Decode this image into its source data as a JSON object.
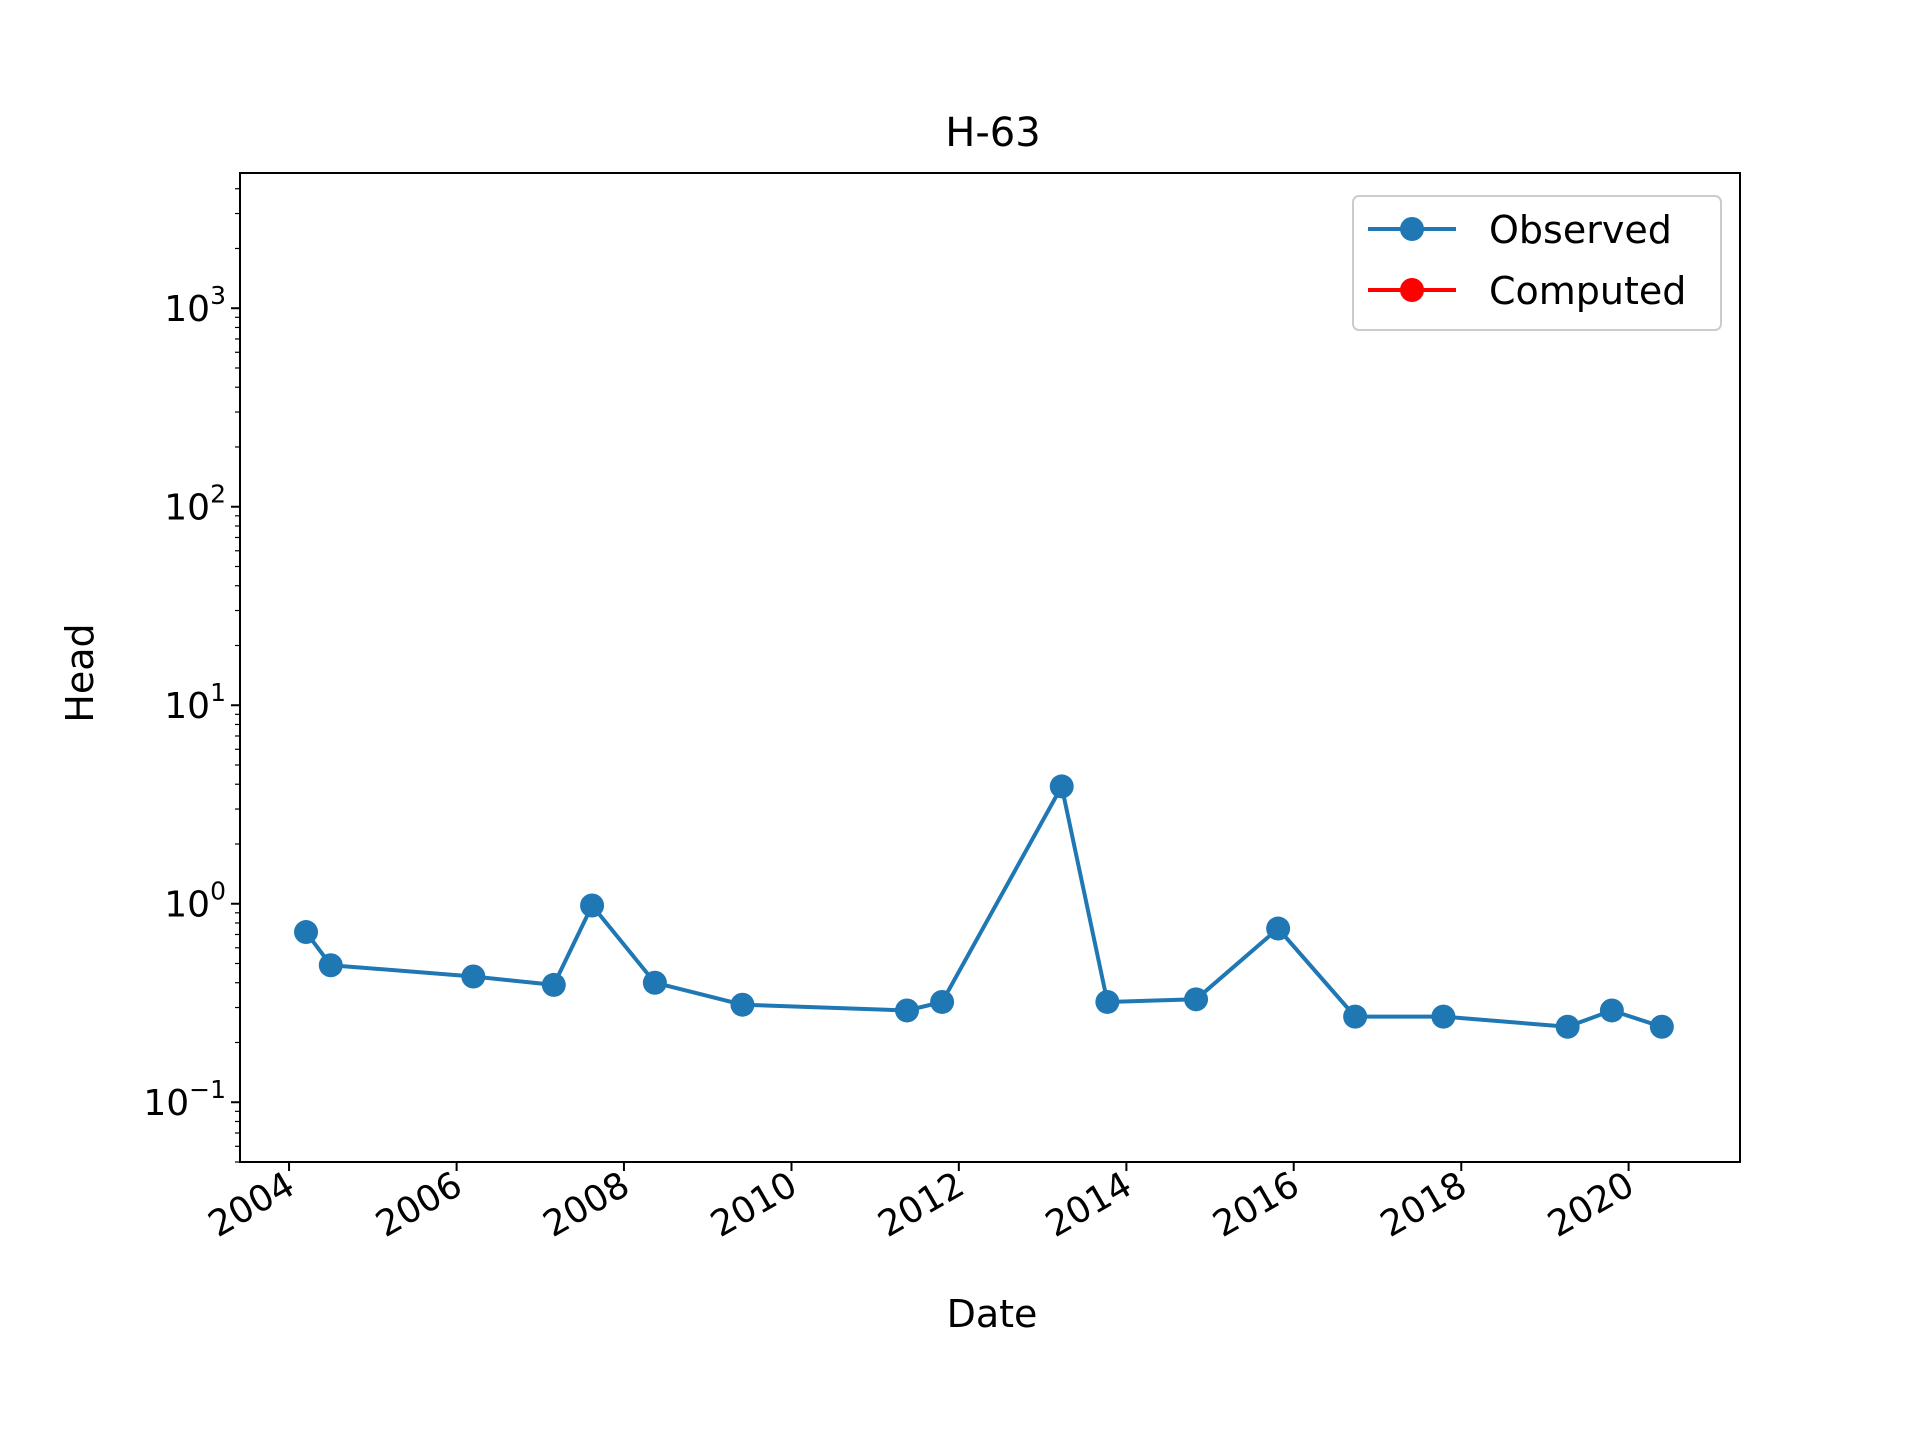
{
  "chart_data": {
    "type": "line",
    "title": "H-63",
    "xlabel": "Date",
    "ylabel": "Head",
    "y_scale": "log",
    "ylim": [
      0.05,
      4800
    ],
    "xlim": [
      "2003-06-01",
      "2021-05-01"
    ],
    "x_ticks": [
      "2004",
      "2006",
      "2008",
      "2010",
      "2012",
      "2014",
      "2016",
      "2018",
      "2020"
    ],
    "y_ticks": [
      {
        "value": 0.1,
        "base": "10",
        "exp": "−1"
      },
      {
        "value": 1,
        "base": "10",
        "exp": "0"
      },
      {
        "value": 10,
        "base": "10",
        "exp": "1"
      },
      {
        "value": 100,
        "base": "10",
        "exp": "2"
      },
      {
        "value": 1000,
        "base": "10",
        "exp": "3"
      }
    ],
    "grid": false,
    "legend_position": "top-right",
    "series": [
      {
        "name": "Observed",
        "color": "#1f77b4",
        "points": [
          {
            "x": "2004-03-15",
            "y": 0.72
          },
          {
            "x": "2004-07-01",
            "y": 0.49
          },
          {
            "x": "2006-03-15",
            "y": 0.43
          },
          {
            "x": "2007-03-01",
            "y": 0.39
          },
          {
            "x": "2007-08-15",
            "y": 0.98
          },
          {
            "x": "2008-05-15",
            "y": 0.4
          },
          {
            "x": "2009-06-01",
            "y": 0.31
          },
          {
            "x": "2011-05-20",
            "y": 0.29
          },
          {
            "x": "2011-10-20",
            "y": 0.32
          },
          {
            "x": "2013-03-25",
            "y": 3.9
          },
          {
            "x": "2013-10-10",
            "y": 0.32
          },
          {
            "x": "2014-11-01",
            "y": 0.33
          },
          {
            "x": "2015-10-25",
            "y": 0.75
          },
          {
            "x": "2016-09-25",
            "y": 0.27
          },
          {
            "x": "2017-10-15",
            "y": 0.27
          },
          {
            "x": "2019-04-10",
            "y": 0.24
          },
          {
            "x": "2019-10-20",
            "y": 0.29
          },
          {
            "x": "2020-05-25",
            "y": 0.24
          }
        ]
      },
      {
        "name": "Computed",
        "color": "#ff0000",
        "points": []
      }
    ]
  }
}
